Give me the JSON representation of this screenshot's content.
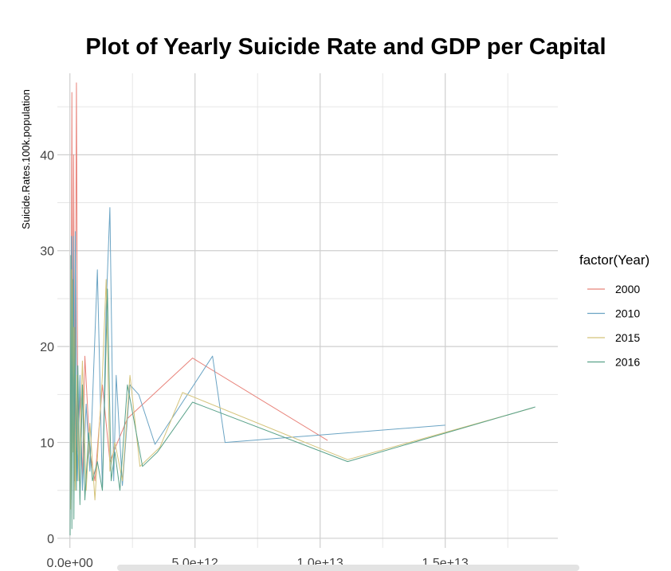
{
  "chart_data": {
    "type": "line",
    "title": "Plot of Yearly Suicide Rate and GDP per Capital",
    "xlabel": "",
    "ylabel": "Suicide.Rates.100k.population",
    "xlim": [
      -500000000000.0,
      19500000000000.0
    ],
    "ylim": [
      -1.0,
      48.5
    ],
    "x_ticks": [
      0,
      5000000000000.0,
      10000000000000.0,
      15000000000000.0
    ],
    "x_tick_labels": [
      "0.0e+00",
      "5.0e+12",
      "1.0e+13",
      "1.5e+13"
    ],
    "y_ticks": [
      0,
      10,
      20,
      30,
      40
    ],
    "y_tick_labels": [
      "0",
      "10",
      "20",
      "30",
      "40"
    ],
    "grid": true,
    "legend": {
      "title": "factor(Year)",
      "position": "right"
    },
    "series": [
      {
        "name": "2000",
        "color": "#e8837a",
        "points": [
          [
            20000000000.0,
            5
          ],
          [
            50000000000.0,
            18
          ],
          [
            80000000000.0,
            46.5
          ],
          [
            110000000000.0,
            10
          ],
          [
            150000000000.0,
            40
          ],
          [
            200000000000.0,
            6
          ],
          [
            260000000000.0,
            47.5
          ],
          [
            320000000000.0,
            9
          ],
          [
            400000000000.0,
            15
          ],
          [
            500000000000.0,
            6
          ],
          [
            600000000000.0,
            19
          ],
          [
            800000000000.0,
            9
          ],
          [
            1000000000000.0,
            6
          ],
          [
            1300000000000.0,
            16
          ],
          [
            1600000000000.0,
            8
          ],
          [
            1900000000000.0,
            10
          ],
          [
            2300000000000.0,
            12.5
          ],
          [
            4900000000000.0,
            18.8
          ],
          [
            10300000000000.0,
            10.2
          ]
        ]
      },
      {
        "name": "2010",
        "color": "#6ba4c4",
        "points": [
          [
            30000000000.0,
            4
          ],
          [
            60000000000.0,
            31.5
          ],
          [
            100000000000.0,
            12
          ],
          [
            140000000000.0,
            31.5
          ],
          [
            180000000000.0,
            8
          ],
          [
            220000000000.0,
            32
          ],
          [
            300000000000.0,
            6
          ],
          [
            400000000000.0,
            17
          ],
          [
            500000000000.0,
            5
          ],
          [
            650000000000.0,
            14
          ],
          [
            800000000000.0,
            7
          ],
          [
            1100000000000.0,
            28
          ],
          [
            1300000000000.0,
            5
          ],
          [
            1450000000000.0,
            24
          ],
          [
            1600000000000.0,
            34.5
          ],
          [
            1750000000000.0,
            6
          ],
          [
            1850000000000.0,
            17
          ],
          [
            2100000000000.0,
            5.5
          ],
          [
            2400000000000.0,
            16
          ],
          [
            2750000000000.0,
            15
          ],
          [
            3400000000000.0,
            9.8
          ],
          [
            5700000000000.0,
            19
          ],
          [
            6200000000000.0,
            10
          ],
          [
            15000000000000.0,
            11.8
          ]
        ]
      },
      {
        "name": "2015",
        "color": "#d4c37a",
        "points": [
          [
            30000000000.0,
            3
          ],
          [
            70000000000.0,
            28
          ],
          [
            110000000000.0,
            9
          ],
          [
            160000000000.0,
            22
          ],
          [
            210000000000.0,
            5
          ],
          [
            280000000000.0,
            17
          ],
          [
            360000000000.0,
            6
          ],
          [
            500000000000.0,
            18.5
          ],
          [
            650000000000.0,
            5
          ],
          [
            800000000000.0,
            12
          ],
          [
            1000000000000.0,
            4
          ],
          [
            1300000000000.0,
            17
          ],
          [
            1450000000000.0,
            27
          ],
          [
            1600000000000.0,
            7
          ],
          [
            1800000000000.0,
            10
          ],
          [
            2100000000000.0,
            6
          ],
          [
            2400000000000.0,
            17
          ],
          [
            2800000000000.0,
            7.5
          ],
          [
            3600000000000.0,
            9.5
          ],
          [
            4500000000000.0,
            15.2
          ],
          [
            11100000000000.0,
            8.2
          ],
          [
            18500000000000.0,
            13.6
          ]
        ]
      },
      {
        "name": "2016",
        "color": "#5aa28a",
        "points": [
          [
            10000000000.0,
            0.3
          ],
          [
            40000000000.0,
            29.5
          ],
          [
            80000000000.0,
            1
          ],
          [
            120000000000.0,
            27
          ],
          [
            160000000000.0,
            2
          ],
          [
            200000000000.0,
            22
          ],
          [
            260000000000.0,
            5
          ],
          [
            320000000000.0,
            18
          ],
          [
            400000000000.0,
            3.5
          ],
          [
            500000000000.0,
            16
          ],
          [
            600000000000.0,
            4
          ],
          [
            750000000000.0,
            11
          ],
          [
            900000000000.0,
            6
          ],
          [
            1100000000000.0,
            8
          ],
          [
            1300000000000.0,
            5
          ],
          [
            1500000000000.0,
            26
          ],
          [
            1650000000000.0,
            6
          ],
          [
            1800000000000.0,
            9
          ],
          [
            2000000000000.0,
            5
          ],
          [
            2300000000000.0,
            16
          ],
          [
            2900000000000.0,
            7.5
          ],
          [
            3500000000000.0,
            9
          ],
          [
            4900000000000.0,
            14.2
          ],
          [
            11100000000000.0,
            8
          ],
          [
            18600000000000.0,
            13.7
          ]
        ]
      }
    ]
  }
}
